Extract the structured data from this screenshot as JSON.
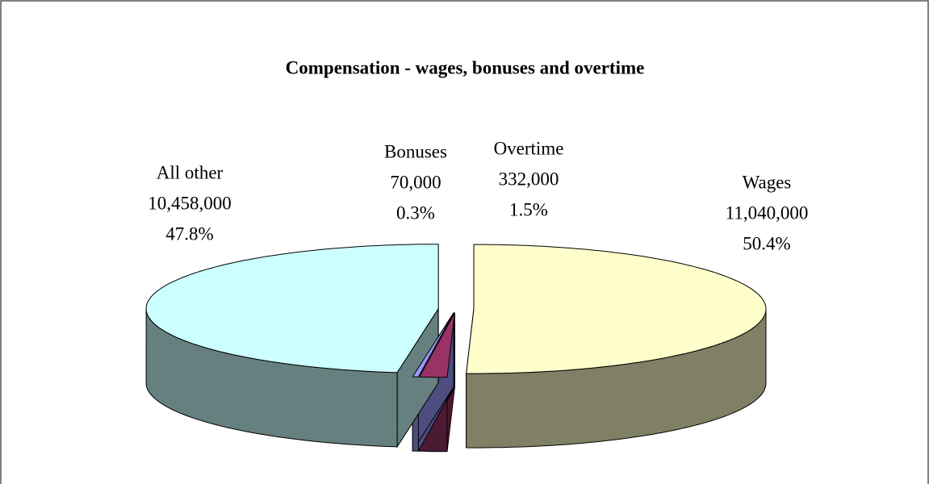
{
  "chart_data": {
    "type": "pie3d",
    "title": "Compensation - wages, bonuses and overtime",
    "categories": [
      "Wages",
      "Overtime",
      "Bonuses",
      "All other"
    ],
    "values": [
      11040000,
      332000,
      70000,
      10458000
    ],
    "value_labels": [
      "11,040,000",
      "332,000",
      "70,000",
      "10,458,000"
    ],
    "percentages": [
      50.4,
      1.5,
      0.3,
      47.8
    ],
    "percentage_labels": [
      "50.4%",
      "1.5%",
      "0.3%",
      "47.8%"
    ],
    "colors": [
      "#ffffcc",
      "#993366",
      "#9999ff",
      "#ccffff"
    ]
  }
}
